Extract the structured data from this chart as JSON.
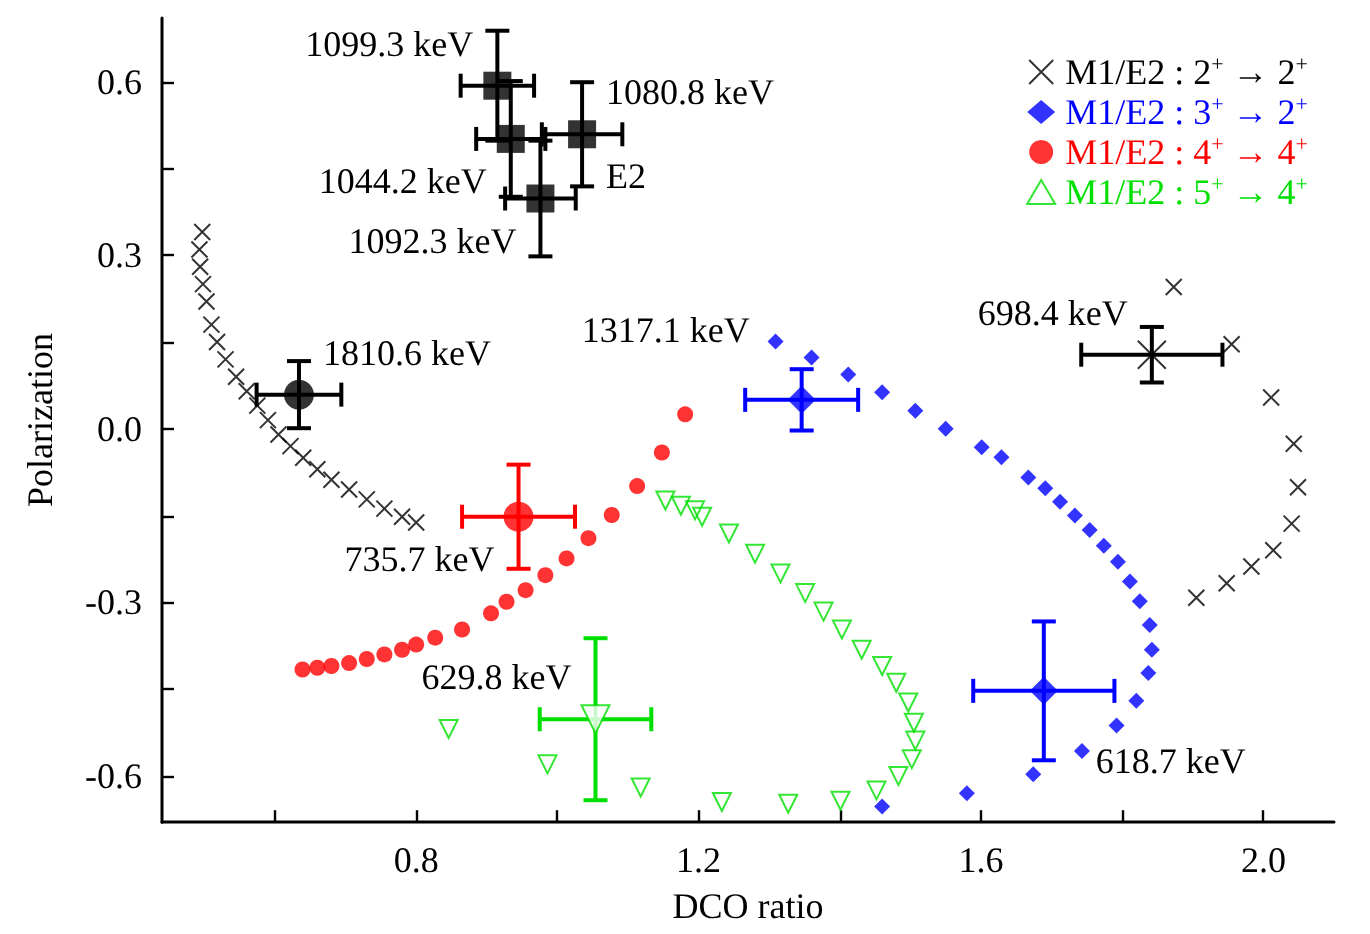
{
  "chart_data": {
    "type": "scatter",
    "xlabel": "DCO ratio",
    "ylabel": "Polarization",
    "xlim": [
      0.44,
      2.1
    ],
    "ylim": [
      -0.68,
      0.71
    ],
    "xticks": [
      {
        "value": 0.6,
        "label": null
      },
      {
        "value": 0.8,
        "label": "0.8"
      },
      {
        "value": 1.0,
        "label": null
      },
      {
        "value": 1.2,
        "label": "1.2"
      },
      {
        "value": 1.4,
        "label": null
      },
      {
        "value": 1.6,
        "label": "1.6"
      },
      {
        "value": 1.8,
        "label": null
      },
      {
        "value": 2.0,
        "label": "2.0"
      }
    ],
    "yticks": [
      {
        "value": -0.6,
        "label": "-0.6"
      },
      {
        "value": -0.45,
        "label": null
      },
      {
        "value": -0.3,
        "label": "-0.3"
      },
      {
        "value": -0.15,
        "label": null
      },
      {
        "value": 0,
        "label": "0.0"
      },
      {
        "value": 0.15,
        "label": null
      },
      {
        "value": 0.3,
        "label": "0.3"
      },
      {
        "value": 0.45,
        "label": null
      },
      {
        "value": 0.6,
        "label": "0.6"
      }
    ],
    "legend": "top right",
    "grid": false,
    "series": [
      {
        "name": "M1/E2 : 2$^{+}$ → 2$^{+}$",
        "color": "#000000",
        "marker": "cross",
        "x": [
          0.497,
          0.493,
          0.494,
          0.498,
          0.503,
          0.51,
          0.518,
          0.53,
          0.545,
          0.56,
          0.575,
          0.59,
          0.605,
          0.622,
          0.64,
          0.66,
          0.68,
          0.705,
          0.73,
          0.755,
          0.78,
          0.8,
          1.873,
          1.955,
          2.011,
          2.043,
          2.049,
          2.04,
          2.014,
          1.983,
          1.948,
          1.905
        ],
        "values": [
          0.34,
          0.31,
          0.28,
          0.25,
          0.22,
          0.18,
          0.15,
          0.12,
          0.09,
          0.065,
          0.04,
          0.015,
          -0.01,
          -0.03,
          -0.05,
          -0.07,
          -0.088,
          -0.105,
          -0.122,
          -0.138,
          -0.152,
          -0.162,
          0.245,
          0.146,
          0.054,
          -0.026,
          -0.101,
          -0.164,
          -0.21,
          -0.238,
          -0.267,
          -0.292
        ]
      },
      {
        "name": "M1/E2 : 3$^{+}$ → 2$^{+}$",
        "color": "#0000ff",
        "marker": "diamond",
        "x": [
          1.309,
          1.36,
          1.412,
          1.46,
          1.507,
          1.55,
          1.601,
          1.629,
          1.667,
          1.691,
          1.712,
          1.733,
          1.754,
          1.774,
          1.794,
          1.811,
          1.825,
          1.839,
          1.842,
          1.837,
          1.82,
          1.792,
          1.743,
          1.674,
          1.58,
          1.46
        ],
        "values": [
          0.151,
          0.123,
          0.094,
          0.063,
          0.031,
          0.0,
          -0.032,
          -0.049,
          -0.084,
          -0.103,
          -0.126,
          -0.15,
          -0.175,
          -0.202,
          -0.23,
          -0.264,
          -0.298,
          -0.339,
          -0.382,
          -0.422,
          -0.47,
          -0.513,
          -0.557,
          -0.597,
          -0.63,
          -0.653
        ]
      },
      {
        "name": "M1/E2 : 4$^{+}$ → 4$^{+}$",
        "color": "#ff0000",
        "marker": "circle",
        "x": [
          0.639,
          0.66,
          0.68,
          0.705,
          0.73,
          0.755,
          0.78,
          0.8,
          0.827,
          0.865,
          0.906,
          0.928,
          0.955,
          0.983,
          1.013,
          1.044,
          1.077,
          1.113,
          1.148,
          1.181
        ],
        "values": [
          -0.416,
          -0.413,
          -0.41,
          -0.405,
          -0.398,
          -0.39,
          -0.382,
          -0.373,
          -0.361,
          -0.347,
          -0.319,
          -0.299,
          -0.279,
          -0.253,
          -0.224,
          -0.189,
          -0.149,
          -0.099,
          -0.041,
          0.025
        ]
      },
      {
        "name": "M1/E2 : 5$^{+}$ → 4$^{+}$",
        "color": "#00e000",
        "marker": "triangle",
        "x": [
          1.153,
          1.175,
          1.195,
          1.205,
          1.243,
          1.28,
          1.316,
          1.351,
          1.377,
          1.403,
          1.431,
          1.46,
          1.48,
          1.497,
          1.505,
          1.507,
          1.502,
          1.483,
          1.452,
          1.401,
          1.327,
          1.233,
          1.118,
          0.986,
          0.846
        ],
        "values": [
          -0.124,
          -0.133,
          -0.141,
          -0.152,
          -0.181,
          -0.216,
          -0.25,
          -0.284,
          -0.316,
          -0.347,
          -0.382,
          -0.41,
          -0.439,
          -0.473,
          -0.508,
          -0.539,
          -0.571,
          -0.6,
          -0.625,
          -0.643,
          -0.648,
          -0.645,
          -0.62,
          -0.58,
          -0.519
        ]
      },
      {
        "color": "#000000",
        "marker": "square",
        "x": [
          0.915,
          0.934,
          1.035,
          0.976
        ],
        "values": [
          0.593,
          0.501,
          0.509,
          0.398
        ],
        "errors": [
          0.095,
          0.1,
          0.09,
          0.1
        ],
        "xerrors": [
          0.052,
          0.049,
          0.057,
          0.05
        ]
      },
      {
        "color": "#000000",
        "marker": "circle",
        "x": [
          0.634
        ],
        "values": [
          0.059
        ],
        "errors": [
          0.058
        ],
        "xerrors": [
          0.06
        ]
      },
      {
        "color": "#000000",
        "marker": "cross",
        "x": [
          1.842
        ],
        "values": [
          0.128
        ],
        "errors": [
          0.048
        ],
        "xerrors": [
          0.1
        ]
      },
      {
        "color": "#0000ff",
        "marker": "diamond",
        "x": [
          1.346
        ],
        "values": [
          0.05
        ],
        "errors": [
          0.053
        ],
        "xerrors": [
          0.08
        ]
      },
      {
        "color": "#ff0000",
        "marker": "circle",
        "x": [
          0.945
        ],
        "values": [
          -0.152
        ],
        "errors": [
          0.09
        ],
        "xerrors": [
          0.08
        ]
      },
      {
        "color": "#00e000",
        "marker": "triangle",
        "x": [
          1.054
        ],
        "values": [
          -0.502
        ],
        "errors": [
          0.14
        ],
        "xerrors": [
          0.079
        ]
      },
      {
        "color": "#0000ff",
        "marker": "diamond",
        "x": [
          1.689
        ],
        "values": [
          -0.453
        ],
        "errors": [
          0.12
        ],
        "xerrors": [
          0.1
        ]
      }
    ],
    "annotations": [
      {
        "text": "1099.3 keV",
        "x": 0.915,
        "y": 0.593
      },
      {
        "text": "1080.8 keV",
        "x": 1.035,
        "y": 0.509
      },
      {
        "text": "1044.2 keV",
        "x": 0.934,
        "y": 0.501
      },
      {
        "text": "1092.3 keV",
        "x": 0.976,
        "y": 0.398
      },
      {
        "text": "E2",
        "x": 1.035,
        "y": 0.509
      },
      {
        "text": "1810.6 keV",
        "x": 0.634,
        "y": 0.059
      },
      {
        "text": "698.4 keV",
        "x": 1.842,
        "y": 0.128
      },
      {
        "text": "1317.1 keV",
        "x": 1.346,
        "y": 0.05
      },
      {
        "text": "735.7 keV",
        "x": 0.945,
        "y": -0.152
      },
      {
        "text": "629.8 keV",
        "x": 1.054,
        "y": -0.502
      },
      {
        "text": "618.7 keV",
        "x": 1.689,
        "y": -0.453
      }
    ]
  }
}
